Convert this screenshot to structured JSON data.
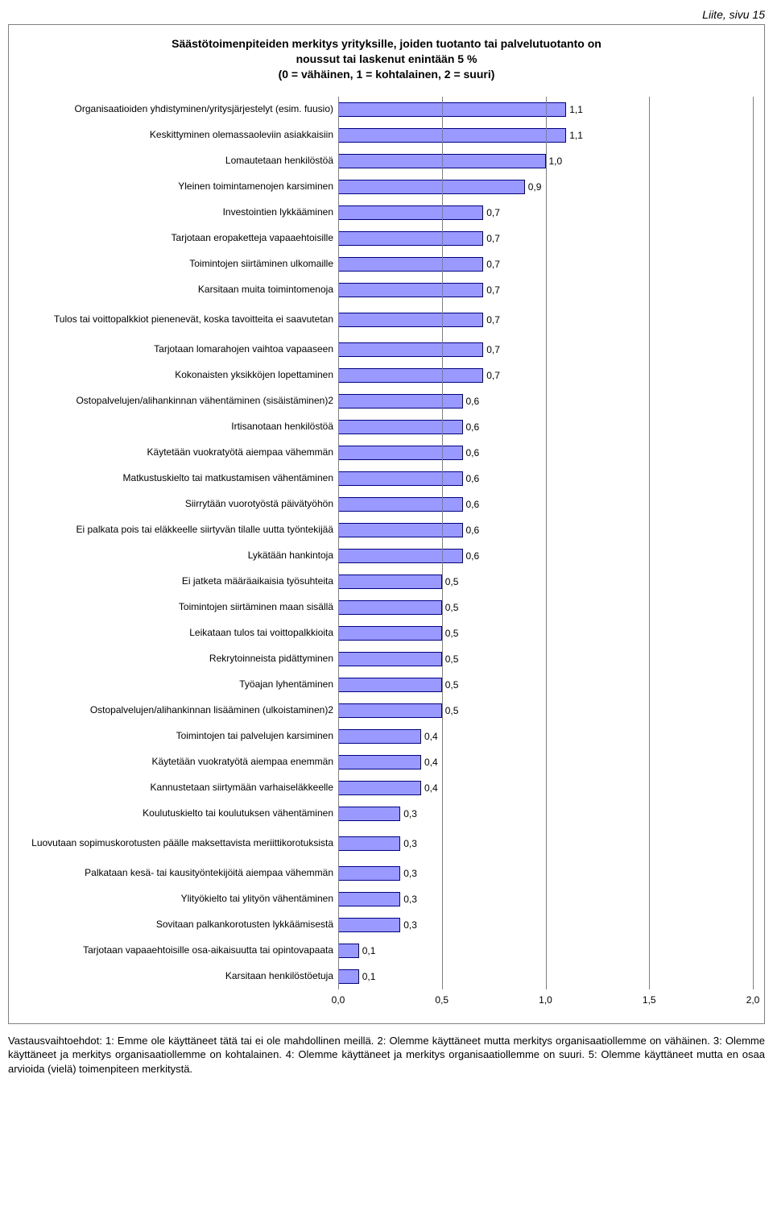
{
  "page_header": "Liite, sivu 15",
  "chart": {
    "type": "bar",
    "title_line1": "Säästötoimenpiteiden merkitys yrityksille, joiden tuotanto tai palvelutuotanto on",
    "title_line2": "noussut tai laskenut enintään 5 %",
    "title_line3": "(0 = vähäinen, 1 = kohtalainen, 2 = suuri)",
    "bar_fill": "#9999ff",
    "bar_border": "#000080",
    "grid_color": "#808080",
    "background": "#ffffff",
    "text_color": "#000000",
    "label_fontsize": 12,
    "title_fontsize": 14,
    "xlim": [
      0.0,
      2.0
    ],
    "xtick_step": 0.5,
    "xticks": [
      "0,0",
      "0,5",
      "1,0",
      "1,5",
      "2,0"
    ],
    "data": [
      {
        "label": "Organisaatioiden yhdistyminen/yritysjärjestelyt (esim. fuusio)",
        "value": 1.1,
        "display_value": "1,1"
      },
      {
        "label": "Keskittyminen olemassaoleviin asiakkaisiin",
        "value": 1.1,
        "display_value": "1,1"
      },
      {
        "label": "Lomautetaan henkilöstöä",
        "value": 1.0,
        "display_value": "1,0"
      },
      {
        "label": "Yleinen toimintamenojen karsiminen",
        "value": 0.9,
        "display_value": "0,9"
      },
      {
        "label": "Investointien lykkääminen",
        "value": 0.7,
        "display_value": "0,7"
      },
      {
        "label": "Tarjotaan eropaketteja vapaaehtoisille",
        "value": 0.7,
        "display_value": "0,7"
      },
      {
        "label": "Toimintojen siirtäminen ulkomaille",
        "value": 0.7,
        "display_value": "0,7"
      },
      {
        "label": "Karsitaan muita toimintomenoja",
        "value": 0.7,
        "display_value": "0,7"
      },
      {
        "label": "Tulos tai voittopalkkiot pienenevät, koska tavoitteita ei saavutetan",
        "value": 0.7,
        "display_value": "0,7",
        "tall": true
      },
      {
        "label": "Tarjotaan lomarahojen vaihtoa vapaaseen",
        "value": 0.7,
        "display_value": "0,7"
      },
      {
        "label": "Kokonaisten yksikköjen lopettaminen",
        "value": 0.7,
        "display_value": "0,7"
      },
      {
        "label": "Ostopalvelujen/alihankinnan vähentäminen (sisäistäminen)2",
        "value": 0.6,
        "display_value": "0,6"
      },
      {
        "label": "Irtisanotaan henkilöstöä",
        "value": 0.6,
        "display_value": "0,6"
      },
      {
        "label": "Käytetään vuokratyötä aiempaa vähemmän",
        "value": 0.6,
        "display_value": "0,6"
      },
      {
        "label": "Matkustuskielto tai matkustamisen vähentäminen",
        "value": 0.6,
        "display_value": "0,6"
      },
      {
        "label": "Siirrytään vuorotyöstä päivätyöhön",
        "value": 0.6,
        "display_value": "0,6"
      },
      {
        "label": "Ei palkata pois tai eläkkeelle siirtyvän tilalle uutta työntekijää",
        "value": 0.6,
        "display_value": "0,6"
      },
      {
        "label": "Lykätään hankintoja",
        "value": 0.6,
        "display_value": "0,6"
      },
      {
        "label": "Ei jatketa määräaikaisia työsuhteita",
        "value": 0.5,
        "display_value": "0,5"
      },
      {
        "label": "Toimintojen siirtäminen maan sisällä",
        "value": 0.5,
        "display_value": "0,5"
      },
      {
        "label": "Leikataan tulos tai voittopalkkioita",
        "value": 0.5,
        "display_value": "0,5"
      },
      {
        "label": "Rekrytoinneista pidättyminen",
        "value": 0.5,
        "display_value": "0,5"
      },
      {
        "label": "Työajan lyhentäminen",
        "value": 0.5,
        "display_value": "0,5"
      },
      {
        "label": "Ostopalvelujen/alihankinnan lisääminen (ulkoistaminen)2",
        "value": 0.5,
        "display_value": "0,5"
      },
      {
        "label": "Toimintojen tai palvelujen karsiminen",
        "value": 0.4,
        "display_value": "0,4"
      },
      {
        "label": "Käytetään vuokratyötä aiempaa enemmän",
        "value": 0.4,
        "display_value": "0,4"
      },
      {
        "label": "Kannustetaan siirtymään varhaiseläkkeelle",
        "value": 0.4,
        "display_value": "0,4"
      },
      {
        "label": "Koulutuskielto tai koulutuksen vähentäminen",
        "value": 0.3,
        "display_value": "0,3"
      },
      {
        "label": "Luovutaan sopimuskorotusten päälle maksettavista meriittikorotuksista",
        "value": 0.3,
        "display_value": "0,3",
        "tall": true
      },
      {
        "label": "Palkataan kesä- tai kausityöntekijöitä aiempaa vähemmän",
        "value": 0.3,
        "display_value": "0,3"
      },
      {
        "label": "Ylityökielto tai ylityön vähentäminen",
        "value": 0.3,
        "display_value": "0,3"
      },
      {
        "label": "Sovitaan palkankorotusten lykkäämisestä",
        "value": 0.3,
        "display_value": "0,3"
      },
      {
        "label": "Tarjotaan vapaaehtoisille osa-aikaisuutta tai opintovapaata",
        "value": 0.1,
        "display_value": "0,1"
      },
      {
        "label": "Karsitaan henkilöstöetuja",
        "value": 0.1,
        "display_value": "0,1"
      }
    ]
  },
  "footnote": "Vastausvaihtoehdot: 1: Emme ole käyttäneet tätä tai ei ole mahdollinen meillä. 2: Olemme käyttäneet mutta merkitys organisaatiollemme on vähäinen. 3: Olemme käyttäneet ja merkitys organisaatiollemme on kohtalainen. 4: Olemme käyttäneet ja merkitys organisaatiollemme on suuri. 5: Olemme käyttäneet mutta en osaa arvioida (vielä) toimenpiteen merkitystä."
}
